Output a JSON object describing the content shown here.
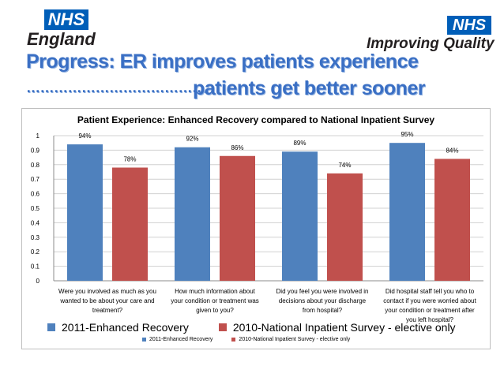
{
  "logos": {
    "left_badge": "NHS",
    "left_sub": "England",
    "right_badge": "NHS",
    "right_sub": "Improving Quality"
  },
  "headline": {
    "line1": "Progress: ER improves patients experience",
    "line2_dots": "…………………………………",
    "line2": "patients get better sooner"
  },
  "colors": {
    "series1": "#4F81BD",
    "series2": "#C0504D",
    "nhs_blue": "#005EB8"
  },
  "chart_data": {
    "type": "bar",
    "title": "Patient Experience: Enhanced Recovery compared to National Inpatient Survey",
    "categories": [
      "Were you involved as much as you wanted to be about your care and treatment?",
      "How much information about your condition or treatment was given to you?",
      "Did you feel you were involved in decisions about your discharge from hospital?",
      "Did hospital staff tell you who to contact if you were worried about your condition or treatment after you left hospital?"
    ],
    "category_lines": [
      [
        "Were you involved as much as you",
        "wanted to be about your care and",
        "treatment?"
      ],
      [
        "How much information about",
        "your condition or treatment was",
        "given to you?"
      ],
      [
        "Did you feel you were involved in",
        "decisions about your discharge",
        "from hospital?"
      ],
      [
        "Did hospital staff tell you who to",
        "contact if you were worried about",
        "your condition or treatment after",
        "you left hospital?"
      ]
    ],
    "series": [
      {
        "name": "2011-Enhanced Recovery",
        "values": [
          0.94,
          0.92,
          0.89,
          0.95
        ],
        "labels": [
          "94%",
          "92%",
          "89%",
          "95%"
        ]
      },
      {
        "name": "2010-National Inpatient Survey - elective only",
        "values": [
          0.78,
          0.86,
          0.74,
          0.84
        ],
        "labels": [
          "78%",
          "86%",
          "74%",
          "84%"
        ]
      }
    ],
    "ylim": [
      0,
      1
    ],
    "yticks": [
      "0",
      "0.1",
      "0.2",
      "0.3",
      "0.4",
      "0.5",
      "0.6",
      "0.7",
      "0.8",
      "0.9",
      "1"
    ],
    "grid": true,
    "legend_position": "bottom"
  },
  "legend_small": {
    "series1": "2011-Enhanced Recovery",
    "series2": "2010-National Inpatient Survey - elective only"
  }
}
